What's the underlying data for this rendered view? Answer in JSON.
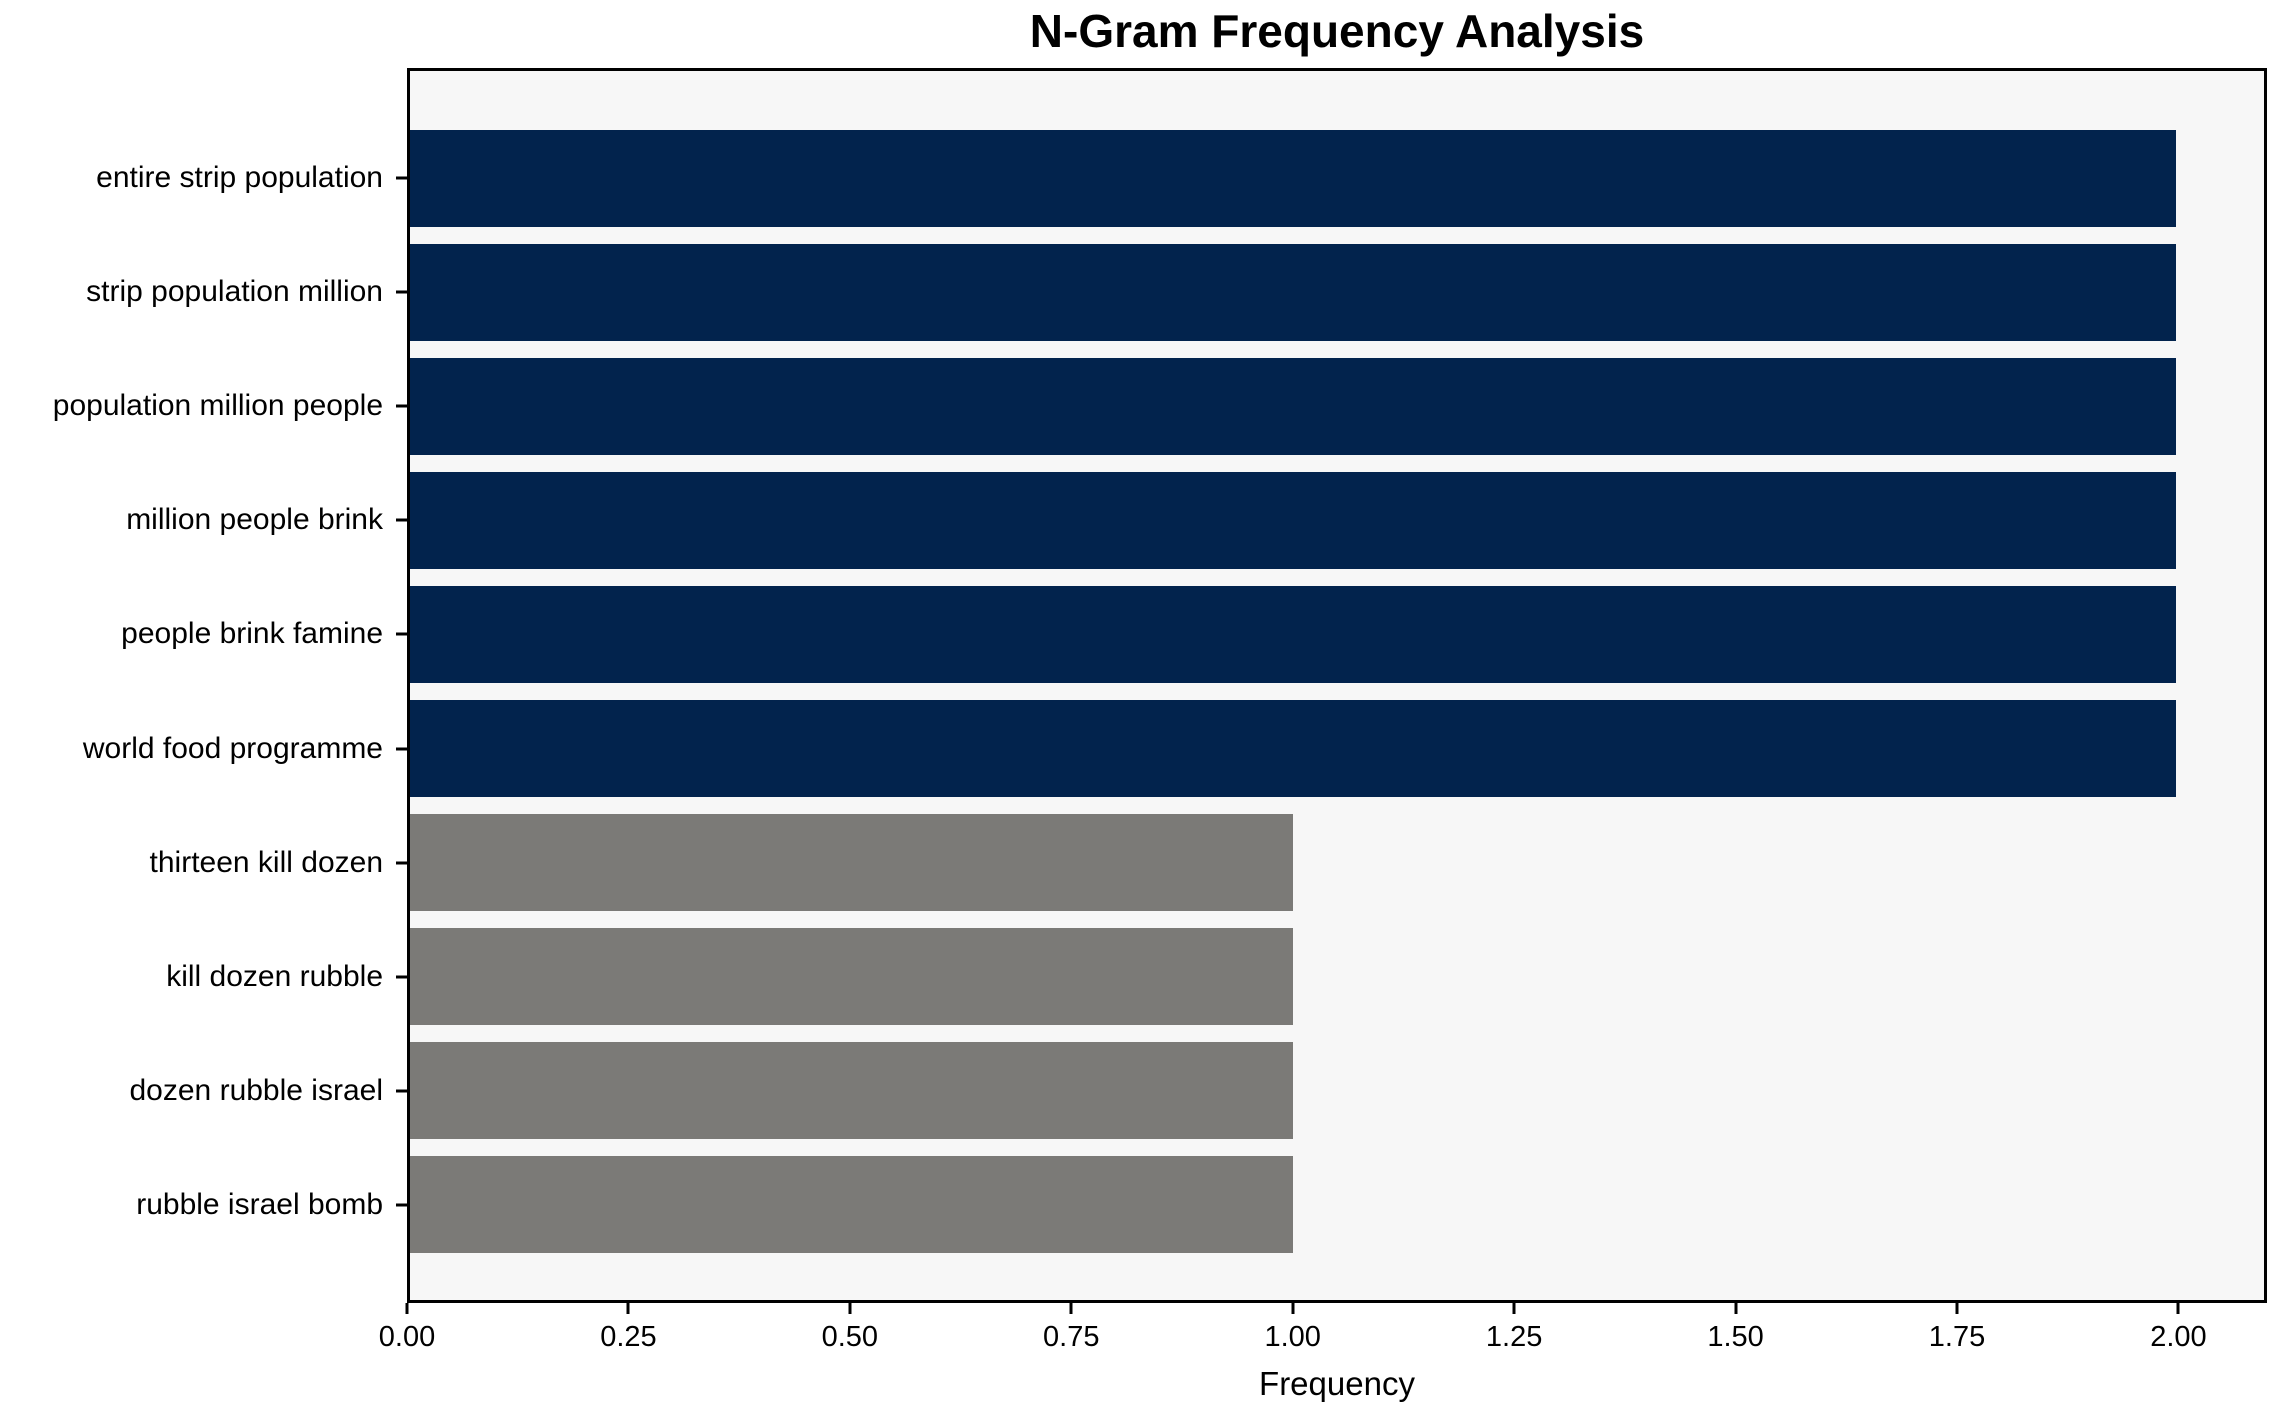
{
  "chart_data": {
    "type": "bar",
    "orientation": "horizontal",
    "title": "N-Gram Frequency Analysis",
    "xlabel": "Frequency",
    "ylabel": "",
    "categories": [
      "entire strip population",
      "strip population million",
      "population million people",
      "million people brink",
      "people brink famine",
      "world food programme",
      "thirteen kill dozen",
      "kill dozen rubble",
      "dozen rubble israel",
      "rubble israel bomb"
    ],
    "values": [
      2,
      2,
      2,
      2,
      2,
      2,
      1,
      1,
      1,
      1
    ],
    "bar_colors": [
      "#02234D",
      "#02234D",
      "#02234D",
      "#02234D",
      "#02234D",
      "#02234D",
      "#7B7A77",
      "#7B7A77",
      "#7B7A77",
      "#7B7A77"
    ],
    "xlim": [
      0,
      2.1
    ],
    "xticks": [
      {
        "pos": 0.0,
        "label": "0.00"
      },
      {
        "pos": 0.25,
        "label": "0.25"
      },
      {
        "pos": 0.5,
        "label": "0.50"
      },
      {
        "pos": 0.75,
        "label": "0.75"
      },
      {
        "pos": 1.0,
        "label": "1.00"
      },
      {
        "pos": 1.25,
        "label": "1.25"
      },
      {
        "pos": 1.5,
        "label": "1.50"
      },
      {
        "pos": 1.75,
        "label": "1.75"
      },
      {
        "pos": 2.0,
        "label": "2.00"
      }
    ],
    "grid": false,
    "legend": false
  },
  "colors": {
    "high_freq_bar": "#02234D",
    "low_freq_bar": "#7B7A77",
    "plot_background": "#F7F7F7",
    "figure_background": "#FFFFFF",
    "frame": "#000000",
    "text": "#000000"
  }
}
